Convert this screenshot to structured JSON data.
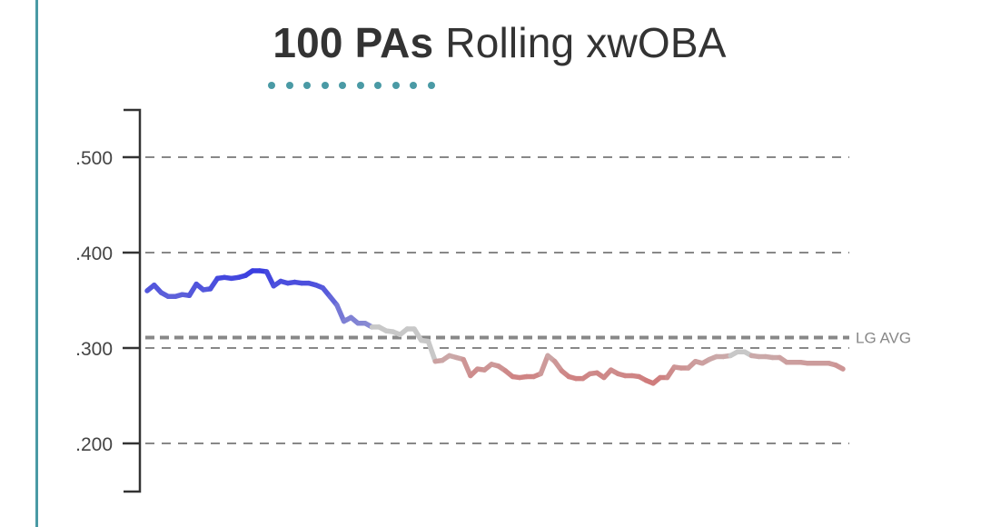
{
  "header": {
    "title_strong": "100 PAs",
    "title_rest": "Rolling xwOBA"
  },
  "colors": {
    "accent": "#4a9aa5",
    "above_avg": "#3a3ee0",
    "neutral": "#c8c8c8",
    "below_avg": "#d07878",
    "grid": "#888888",
    "axis": "#333333"
  },
  "chart_data": {
    "type": "line",
    "title": "100 PAs Rolling xwOBA",
    "xlabel": "",
    "ylabel": "",
    "ylim": [
      0.15,
      0.55
    ],
    "yticks": [
      0.5,
      0.4,
      0.3,
      0.2
    ],
    "ytick_labels": [
      ".500",
      ".400",
      ".300",
      ".200"
    ],
    "grid": true,
    "reference_line": {
      "label": "LG AVG",
      "value": 0.311
    },
    "color_scale": "blue above league average, gray near average, red below average",
    "series": [
      {
        "x": [
          1,
          2,
          3,
          4,
          5,
          6,
          7,
          8,
          9,
          10,
          11,
          12,
          13,
          14,
          15,
          16,
          17,
          18,
          19,
          20,
          21,
          22,
          23,
          24,
          25,
          26,
          27,
          28,
          29,
          30,
          31,
          32,
          33,
          34,
          35,
          36,
          37,
          38,
          39,
          40,
          41,
          42,
          43,
          44,
          45,
          46,
          47,
          48,
          49,
          50,
          51,
          52,
          53,
          54,
          55,
          56,
          57,
          58,
          59,
          60,
          61,
          62,
          63,
          64,
          65,
          66,
          67,
          68,
          69,
          70,
          71,
          72,
          73,
          74,
          75,
          76,
          77,
          78,
          79,
          80,
          81,
          82,
          83,
          84,
          85,
          86,
          87,
          88,
          89,
          90,
          91,
          92,
          93,
          94,
          95,
          96,
          97,
          98,
          99,
          100
        ],
        "values": [
          0.36,
          0.366,
          0.358,
          0.354,
          0.354,
          0.356,
          0.355,
          0.367,
          0.361,
          0.362,
          0.373,
          0.374,
          0.373,
          0.374,
          0.376,
          0.381,
          0.381,
          0.38,
          0.365,
          0.37,
          0.368,
          0.369,
          0.368,
          0.368,
          0.366,
          0.363,
          0.354,
          0.345,
          0.328,
          0.332,
          0.326,
          0.326,
          0.322,
          0.322,
          0.318,
          0.317,
          0.314,
          0.32,
          0.32,
          0.308,
          0.307,
          0.286,
          0.287,
          0.292,
          0.29,
          0.288,
          0.271,
          0.278,
          0.277,
          0.283,
          0.281,
          0.276,
          0.27,
          0.269,
          0.27,
          0.27,
          0.273,
          0.292,
          0.286,
          0.276,
          0.27,
          0.268,
          0.268,
          0.273,
          0.274,
          0.269,
          0.277,
          0.273,
          0.271,
          0.271,
          0.27,
          0.266,
          0.263,
          0.269,
          0.269,
          0.28,
          0.279,
          0.279,
          0.286,
          0.284,
          0.288,
          0.291,
          0.291,
          0.292,
          0.296,
          0.296,
          0.292,
          0.291,
          0.291,
          0.29,
          0.29,
          0.285,
          0.285,
          0.285,
          0.284,
          0.284,
          0.284,
          0.284,
          0.282,
          0.278
        ]
      }
    ]
  }
}
